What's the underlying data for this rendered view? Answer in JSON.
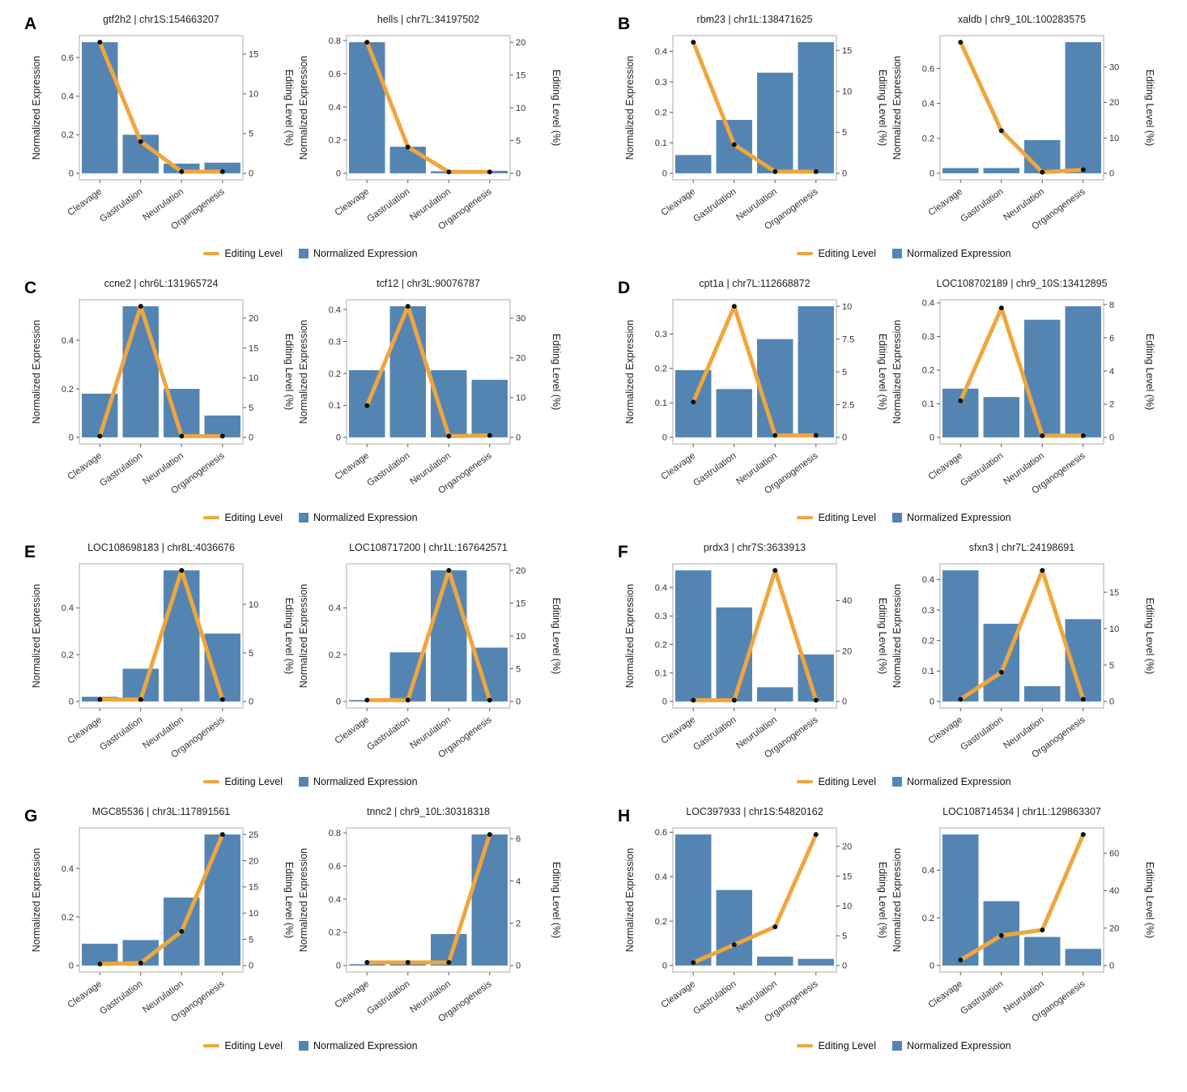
{
  "colors": {
    "bar": "#5485B2",
    "line": "#EFA63E",
    "dot": "#111111",
    "border": "#ADADAD",
    "tick": "#555555"
  },
  "legend": {
    "editing_label": "Editing Level",
    "expression_label": "Normalized Expression"
  },
  "chart_data": {
    "type": "bar+line dual-axis combo, 8 panels x 2 charts",
    "categories": [
      "Cleavage",
      "Gastrulation",
      "Neurulation",
      "Organogenesis"
    ],
    "ylabel_left": "Normalized Expression",
    "ylabel_right": "Editing Level (%)",
    "legend": [
      "Editing Level",
      "Normalized Expression"
    ],
    "panels": [
      {
        "label": "A",
        "charts": [
          {
            "title": "gtf2h2 | chr1S:154663207",
            "bars": [
              0.68,
              0.2,
              0.05,
              0.055
            ],
            "editing_level": [
              16.5,
              4.0,
              0.2,
              0.2
            ],
            "left_ticks": [
              0,
              0.2,
              0.4,
              0.6
            ],
            "right_ticks": [
              0,
              5,
              10,
              15
            ],
            "left_max": 0.68,
            "right_max": 16.5
          },
          {
            "title": "hells | chr7L:34197502",
            "bars": [
              0.79,
              0.16,
              0.012,
              0.015
            ],
            "editing_level": [
              20.0,
              4.0,
              0.2,
              0.2
            ],
            "left_ticks": [
              0,
              0.2,
              0.4,
              0.6,
              0.8
            ],
            "right_ticks": [
              0,
              5,
              10,
              15,
              20
            ],
            "left_max": 0.79,
            "right_max": 20.0
          }
        ]
      },
      {
        "label": "B",
        "charts": [
          {
            "title": "rbm23 | chr1L:138471625",
            "bars": [
              0.06,
              0.175,
              0.33,
              0.43
            ],
            "editing_level": [
              16.0,
              3.5,
              0.2,
              0.2
            ],
            "left_ticks": [
              0,
              0.1,
              0.2,
              0.3,
              0.4
            ],
            "right_ticks": [
              0,
              5,
              10,
              15
            ],
            "left_max": 0.43,
            "right_max": 16.0
          },
          {
            "title": "xaldb | chr9_10L:100283575",
            "bars": [
              0.03,
              0.03,
              0.19,
              0.75
            ],
            "editing_level": [
              37.0,
              12.0,
              0.3,
              1.0
            ],
            "left_ticks": [
              0,
              0.2,
              0.4,
              0.6
            ],
            "right_ticks": [
              0,
              10,
              20,
              30
            ],
            "left_max": 0.75,
            "right_max": 37.0
          }
        ]
      },
      {
        "label": "C",
        "charts": [
          {
            "title": "ccne2 | chr6L:131965724",
            "bars": [
              0.18,
              0.54,
              0.2,
              0.09
            ],
            "editing_level": [
              0.2,
              22.0,
              0.2,
              0.2
            ],
            "left_ticks": [
              0,
              0.2,
              0.4
            ],
            "right_ticks": [
              0,
              5,
              10,
              15,
              20
            ],
            "left_max": 0.54,
            "right_max": 22.0
          },
          {
            "title": "tcf12 | chr3L:90076787",
            "bars": [
              0.21,
              0.41,
              0.21,
              0.18
            ],
            "editing_level": [
              8.0,
              33.0,
              0.3,
              0.5
            ],
            "left_ticks": [
              0,
              0.1,
              0.2,
              0.3,
              0.4
            ],
            "right_ticks": [
              0,
              10,
              20,
              30
            ],
            "left_max": 0.41,
            "right_max": 33.0
          }
        ]
      },
      {
        "label": "D",
        "charts": [
          {
            "title": "cpt1a | chr7L:112668872",
            "bars": [
              0.195,
              0.14,
              0.285,
              0.38
            ],
            "editing_level": [
              2.7,
              10.0,
              0.15,
              0.15
            ],
            "left_ticks": [
              0,
              0.1,
              0.2,
              0.3
            ],
            "right_ticks": [
              0,
              2.5,
              5,
              7.5,
              10
            ],
            "left_max": 0.38,
            "right_max": 10.0
          },
          {
            "title": "LOC108702189 | chr9_10S:13412895",
            "bars": [
              0.145,
              0.12,
              0.35,
              0.39
            ],
            "editing_level": [
              2.2,
              7.8,
              0.1,
              0.1
            ],
            "left_ticks": [
              0,
              0.1,
              0.2,
              0.3,
              0.4
            ],
            "right_ticks": [
              0,
              2,
              4,
              6,
              8
            ],
            "left_max": 0.39,
            "right_max": 7.9
          }
        ]
      },
      {
        "label": "E",
        "charts": [
          {
            "title": "LOC108698183 | chr8L:4036676",
            "bars": [
              0.02,
              0.14,
              0.56,
              0.29
            ],
            "editing_level": [
              0.2,
              0.2,
              13.5,
              0.2
            ],
            "left_ticks": [
              0,
              0.2,
              0.4
            ],
            "right_ticks": [
              0,
              5,
              10
            ],
            "left_max": 0.56,
            "right_max": 13.5
          },
          {
            "title": "LOC108717200 | chr1L:167642571",
            "bars": [
              0.006,
              0.21,
              0.56,
              0.23
            ],
            "editing_level": [
              0.2,
              0.2,
              20.0,
              0.2
            ],
            "left_ticks": [
              0,
              0.2,
              0.4
            ],
            "right_ticks": [
              0,
              5,
              10,
              15,
              20
            ],
            "left_max": 0.56,
            "right_max": 20.0
          }
        ]
      },
      {
        "label": "F",
        "charts": [
          {
            "title": "prdx3 | chr7S:3633913",
            "bars": [
              0.46,
              0.33,
              0.05,
              0.165
            ],
            "editing_level": [
              0.5,
              0.5,
              52.0,
              0.5
            ],
            "left_ticks": [
              0,
              0.1,
              0.2,
              0.3,
              0.4
            ],
            "right_ticks": [
              0,
              20,
              40
            ],
            "left_max": 0.46,
            "right_max": 52.0
          },
          {
            "title": "sfxn3 | chr7L:24198691",
            "bars": [
              0.43,
              0.255,
              0.05,
              0.27
            ],
            "editing_level": [
              0.3,
              4.0,
              18.0,
              0.3
            ],
            "left_ticks": [
              0,
              0.1,
              0.2,
              0.3,
              0.4
            ],
            "right_ticks": [
              0,
              5,
              10,
              15
            ],
            "left_max": 0.43,
            "right_max": 18.0
          }
        ]
      },
      {
        "label": "G",
        "charts": [
          {
            "title": "MGC85536 | chr3L:117891561",
            "bars": [
              0.09,
              0.105,
              0.28,
              0.54
            ],
            "editing_level": [
              0.3,
              0.5,
              6.5,
              25.0
            ],
            "left_ticks": [
              0,
              0.2,
              0.4
            ],
            "right_ticks": [
              0,
              5,
              10,
              15,
              20,
              25
            ],
            "left_max": 0.54,
            "right_max": 25.0
          },
          {
            "title": "tnnc2 | chr9_10L:30318318",
            "bars": [
              0.008,
              0.02,
              0.19,
              0.79
            ],
            "editing_level": [
              0.15,
              0.15,
              0.15,
              6.2
            ],
            "left_ticks": [
              0,
              0.2,
              0.4,
              0.6,
              0.8
            ],
            "right_ticks": [
              0,
              2,
              4,
              6
            ],
            "left_max": 0.79,
            "right_max": 6.2
          }
        ]
      },
      {
        "label": "H",
        "charts": [
          {
            "title": "LOC397933 | chr1S:54820162",
            "bars": [
              0.59,
              0.34,
              0.04,
              0.03
            ],
            "editing_level": [
              0.5,
              3.5,
              6.5,
              22.0
            ],
            "left_ticks": [
              0,
              0.2,
              0.4,
              0.6
            ],
            "right_ticks": [
              0,
              5,
              10,
              15,
              20
            ],
            "left_max": 0.59,
            "right_max": 22.0
          },
          {
            "title": "LOC108714534 | chr1L:129863307",
            "bars": [
              0.55,
              0.27,
              0.12,
              0.07
            ],
            "editing_level": [
              3.0,
              16.0,
              19.0,
              70.0
            ],
            "left_ticks": [
              0,
              0.2,
              0.4
            ],
            "right_ticks": [
              0,
              20,
              40,
              60
            ],
            "left_max": 0.55,
            "right_max": 70.0
          }
        ]
      }
    ]
  }
}
